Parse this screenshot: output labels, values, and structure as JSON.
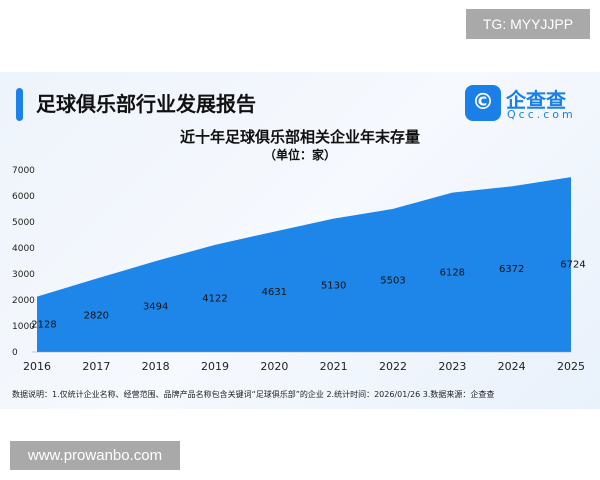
{
  "watermark_top": "TG: MYYJJPP",
  "watermark_bottom": "www.prowanbo.com",
  "header": {
    "title": "足球俱乐部行业发展报告",
    "logo_name": "企查查",
    "logo_domain": "Qcc.com"
  },
  "note": "数据说明：1.仅统计企业名称、经营范围、品牌产品名称包含关键词“足球俱乐部”的企业  2.统计时间：2026/01/26   3.数据来源：企查查",
  "colors": {
    "area": "#1d86e8",
    "accent": "#1a7fe6"
  },
  "chart_data": {
    "type": "area",
    "title": "近十年足球俱乐部相关企业年末存量",
    "subtitle": "（单位：家）",
    "categories": [
      "2016",
      "2017",
      "2018",
      "2019",
      "2020",
      "2021",
      "2022",
      "2023",
      "2024",
      "2025"
    ],
    "values": [
      2128,
      2820,
      3494,
      4122,
      4631,
      5130,
      5503,
      6128,
      6372,
      6724
    ],
    "yticks": [
      0,
      1000,
      2000,
      3000,
      4000,
      5000,
      6000,
      7000
    ],
    "ylim": [
      0,
      7000
    ],
    "grid": false
  }
}
